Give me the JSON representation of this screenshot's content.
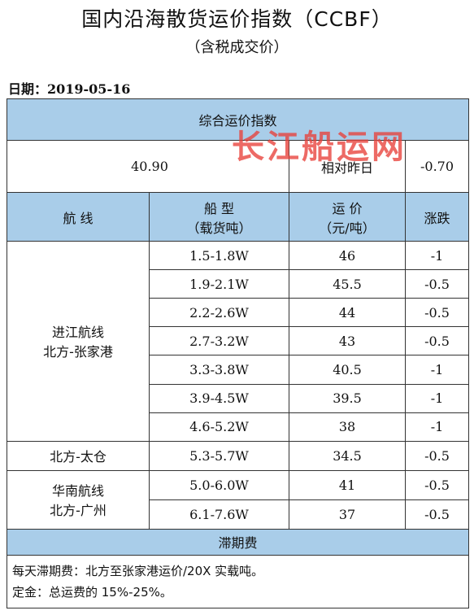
{
  "title": "国内沿海散货运价指数（CCBF）",
  "subtitle": "（含税成交价）",
  "date_label": "日期：2019-05-16",
  "table": {
    "composite_header": "综合运价指数",
    "index_value": "40.90",
    "relative_label": "相对昨日",
    "relative_value": "-0.70",
    "col_route": "航    线",
    "col_ship_line1": "船    型",
    "col_ship_line2": "（载货吨）",
    "col_price_line1": "运    价",
    "col_price_line2": "（元/吨）",
    "col_change": "涨跌",
    "group1_line1": "进江航线",
    "group1_line2": "北方-张家港",
    "group2": "北方-太仓",
    "group3_line1": "华南航线",
    "group3_line2": "北方-广州",
    "rows": [
      {
        "ship": "1.5-1.8W",
        "price": "46",
        "change": "-1"
      },
      {
        "ship": "1.9-2.1W",
        "price": "45.5",
        "change": "-0.5"
      },
      {
        "ship": "2.2-2.6W",
        "price": "44",
        "change": "-0.5"
      },
      {
        "ship": "2.7-3.2W",
        "price": "43",
        "change": "-0.5"
      },
      {
        "ship": "3.3-3.8W",
        "price": "40.5",
        "change": "-1"
      },
      {
        "ship": "3.9-4.5W",
        "price": "39.5",
        "change": "-1"
      },
      {
        "ship": "4.6-5.2W",
        "price": "38",
        "change": "-1"
      },
      {
        "ship": "5.3-5.7W",
        "price": "34.5",
        "change": "-0.5"
      },
      {
        "ship": "5.0-6.0W",
        "price": "41",
        "change": "-0.5"
      },
      {
        "ship": "6.1-7.6W",
        "price": "37",
        "change": "-0.5"
      }
    ],
    "demurrage_header": "滞期费",
    "note1": "每天滞期费：北方至张家港运价/20X 实载吨。",
    "note2": "定金：总运费的 15%-25%。"
  },
  "watermark": "长江船运网",
  "colors": {
    "header_blue": "#a9cde9",
    "watermark_red": "#e8413a"
  }
}
